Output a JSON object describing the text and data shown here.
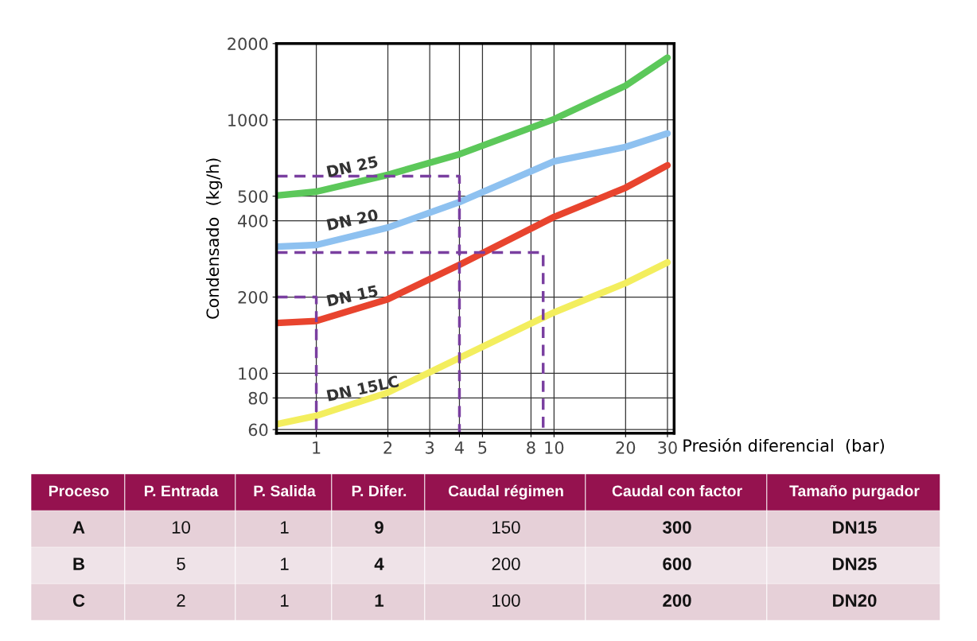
{
  "chart_data": {
    "type": "line",
    "xlabel": "Presión diferencial  (bar)",
    "ylabel": "Condensado  (kg/h)",
    "log": "xy",
    "grid": true,
    "xlim": [
      0.68,
      32
    ],
    "ylim": [
      58,
      2000
    ],
    "xticks": [
      1,
      2,
      3,
      4,
      5,
      8,
      10,
      20,
      30
    ],
    "yticks": [
      60,
      80,
      100,
      200,
      400,
      500,
      1000,
      2000
    ],
    "x": [
      0.68,
      1,
      2,
      4,
      10,
      20,
      30
    ],
    "series": [
      {
        "name": "DN 25",
        "color": "#5cc85a",
        "values": [
          503,
          521,
          607,
          732,
          1007,
          1365,
          1760
        ]
      },
      {
        "name": "DN 20",
        "color": "#8ec1f0",
        "values": [
          316,
          321,
          376,
          474,
          686,
          782,
          884
        ]
      },
      {
        "name": "DN 15",
        "color": "#e8442e",
        "values": [
          158,
          161,
          196,
          268,
          414,
          540,
          662
        ]
      },
      {
        "name": "DN 15LC",
        "color": "#f3ee5e",
        "values": [
          63,
          68,
          84,
          115,
          174,
          227,
          274
        ]
      },
      {
        "color": "#7a3fa0",
        "line_style": "dashed",
        "x": [
          0.68,
          9,
          9
        ],
        "values": [
          300,
          300,
          58
        ]
      },
      {
        "color": "#7a3fa0",
        "line_style": "dashed",
        "x": [
          0.68,
          4,
          4
        ],
        "values": [
          600,
          600,
          58
        ]
      },
      {
        "color": "#7a3fa0",
        "line_style": "dashed",
        "x": [
          0.68,
          1,
          1
        ],
        "values": [
          200,
          200,
          58
        ]
      }
    ],
    "annotations": [
      "Proceso",
      "P. Entrada",
      "P. Salida",
      "P. Difer.",
      "Caudal régimen",
      "Caudal con factor",
      "Tamaño purgador",
      "A",
      "10",
      "1",
      "9",
      "150",
      "300",
      "DN15",
      "B",
      "5",
      "1",
      "4",
      "200",
      "600",
      "DN25",
      "C",
      "2",
      "1",
      "1",
      "100",
      "200",
      "DN20"
    ]
  }
}
